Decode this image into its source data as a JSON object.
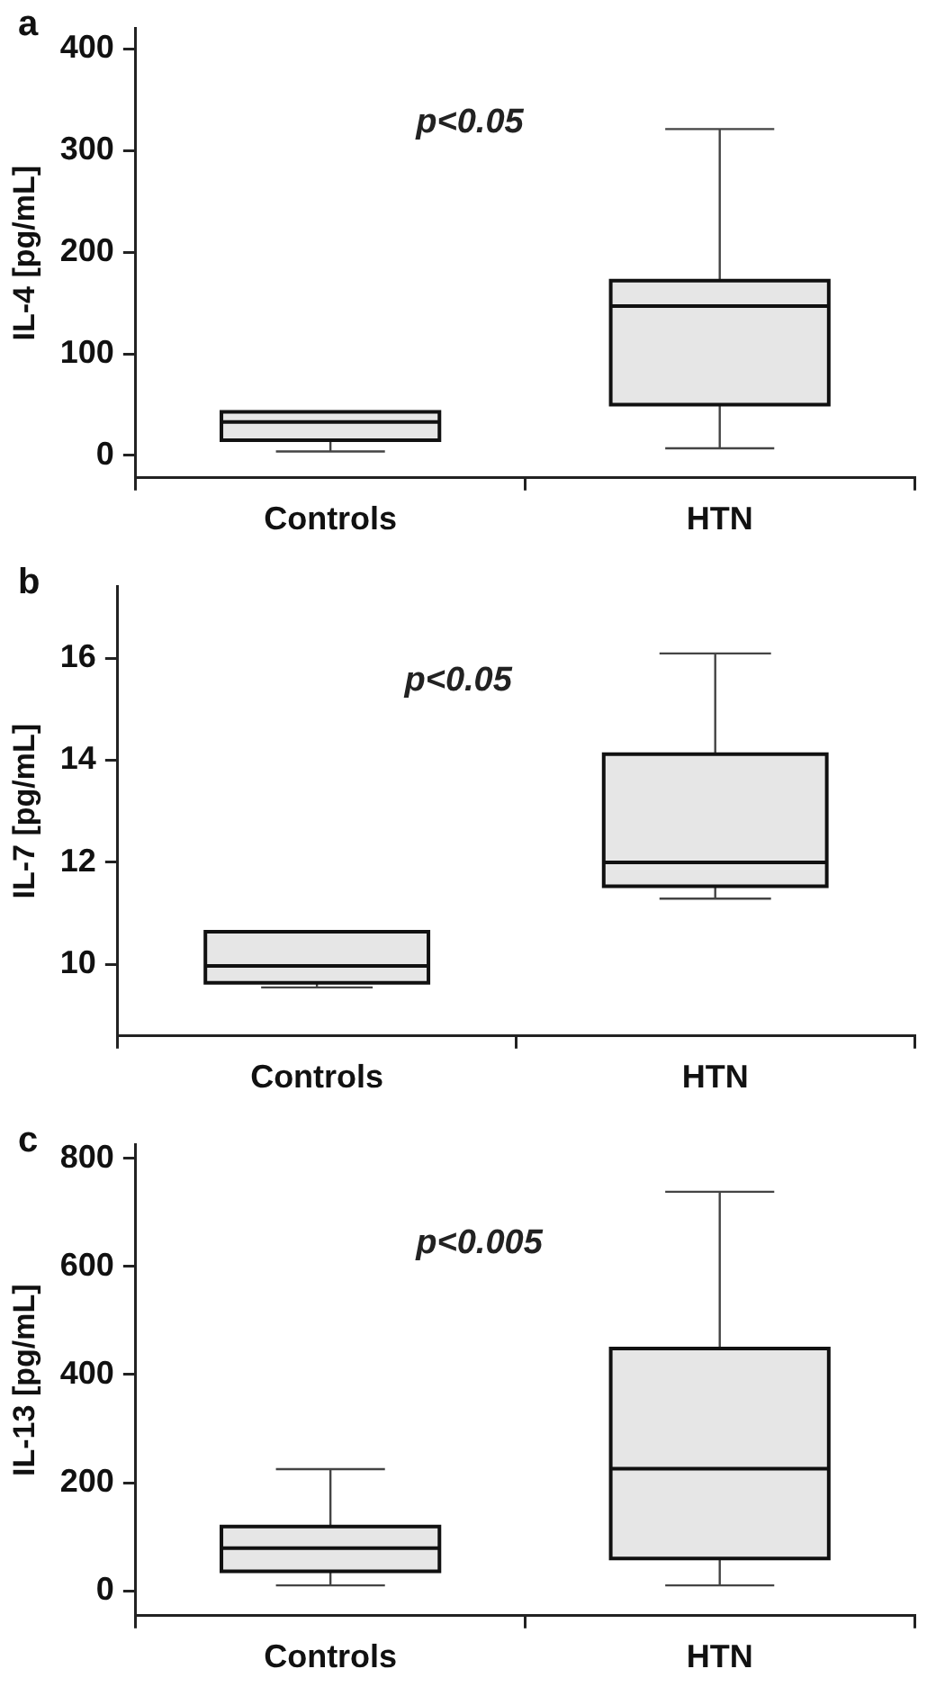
{
  "chart_data": [
    {
      "type": "box",
      "title": "a",
      "ylabel": "IL-4 [pg/mL]",
      "categories": [
        "Controls",
        "HTN"
      ],
      "annotations": [
        "p<0.05"
      ],
      "ylim": [
        -22,
        420
      ],
      "yticks": [
        0,
        100,
        200,
        300,
        400
      ],
      "grid": false,
      "legend": false,
      "boxes": [
        {
          "low": 4,
          "q1": 15,
          "median": 33,
          "q3": 43,
          "high": 43
        },
        {
          "low": 7,
          "q1": 50,
          "median": 147,
          "q3": 172,
          "high": 321
        }
      ]
    },
    {
      "type": "box",
      "title": "b",
      "ylabel": "IL-7 [pg/mL]",
      "categories": [
        "Controls",
        "HTN"
      ],
      "annotations": [
        "p<0.05"
      ],
      "ylim": [
        8.6,
        17.4
      ],
      "yticks": [
        10,
        12,
        14,
        16
      ],
      "grid": false,
      "legend": false,
      "boxes": [
        {
          "low": 9.55,
          "q1": 9.64,
          "median": 9.97,
          "q3": 10.64,
          "high": 10.64
        },
        {
          "low": 11.29,
          "q1": 11.53,
          "median": 12.0,
          "q3": 14.12,
          "high": 16.09
        }
      ]
    },
    {
      "type": "box",
      "title": "c",
      "ylabel": "IL-13 [pg/mL]",
      "categories": [
        "Controls",
        "HTN"
      ],
      "annotations": [
        "p<0.005"
      ],
      "ylim": [
        -46,
        825
      ],
      "yticks": [
        0,
        200,
        400,
        600,
        800
      ],
      "grid": false,
      "legend": false,
      "boxes": [
        {
          "low": 10,
          "q1": 36,
          "median": 79,
          "q3": 119,
          "high": 225
        },
        {
          "low": 10,
          "q1": 60,
          "median": 226,
          "q3": 448,
          "high": 738
        }
      ]
    }
  ]
}
